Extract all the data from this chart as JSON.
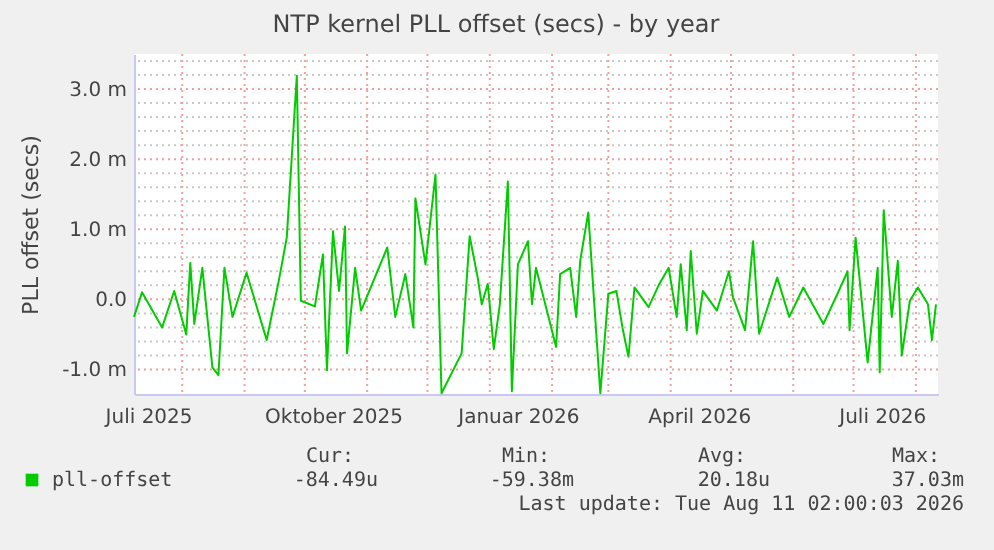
{
  "chart_data": {
    "type": "line",
    "title": "NTP kernel PLL offset (secs) - by year",
    "ylabel": "PLL offset (secs)",
    "x": [
      "2025-07-08",
      "2025-07-12",
      "2025-07-22",
      "2025-07-28",
      "2025-08-03",
      "2025-08-05",
      "2025-08-07",
      "2025-08-11",
      "2025-08-16",
      "2025-08-19",
      "2025-08-22",
      "2025-08-26",
      "2025-09-02",
      "2025-09-12",
      "2025-09-18",
      "2025-09-22",
      "2025-09-27",
      "2025-09-29",
      "2025-10-06",
      "2025-10-10",
      "2025-10-12",
      "2025-10-15",
      "2025-10-18",
      "2025-10-21",
      "2025-10-22",
      "2025-10-26",
      "2025-10-29",
      "2025-11-11",
      "2025-11-15",
      "2025-11-20",
      "2025-11-24",
      "2025-11-25",
      "2025-11-30",
      "2025-12-05",
      "2025-12-08",
      "2025-12-18",
      "2025-12-22",
      "2025-12-26",
      "2025-12-28",
      "2025-12-31",
      "2026-01-03",
      "2026-01-06",
      "2026-01-10",
      "2026-01-12",
      "2026-01-15",
      "2026-01-20",
      "2026-01-22",
      "2026-01-24",
      "2026-02-03",
      "2026-02-05",
      "2026-02-10",
      "2026-02-13",
      "2026-02-15",
      "2026-02-19",
      "2026-02-22",
      "2026-02-25",
      "2026-03-01",
      "2026-03-05",
      "2026-03-08",
      "2026-03-11",
      "2026-03-14",
      "2026-03-21",
      "2026-03-26",
      "2026-03-31",
      "2026-04-04",
      "2026-04-06",
      "2026-04-09",
      "2026-04-11",
      "2026-04-14",
      "2026-04-17",
      "2026-04-24",
      "2026-04-30",
      "2026-05-02",
      "2026-05-08",
      "2026-05-12",
      "2026-05-15",
      "2026-05-24",
      "2026-05-30",
      "2026-06-06",
      "2026-06-16",
      "2026-06-23",
      "2026-06-28",
      "2026-06-29",
      "2026-07-02",
      "2026-07-08",
      "2026-07-13",
      "2026-07-14",
      "2026-07-16",
      "2026-07-20",
      "2026-07-23",
      "2026-07-25",
      "2026-07-29",
      "2026-08-02",
      "2026-08-07",
      "2026-08-09",
      "2026-08-11"
    ],
    "series": [
      {
        "name": "pll-offset",
        "color": "#00cc00",
        "values": [
          -0.25,
          0.1,
          -0.4,
          0.12,
          -0.5,
          0.52,
          -0.35,
          0.45,
          -0.97,
          -1.08,
          0.45,
          -0.25,
          0.38,
          -0.58,
          0.26,
          0.88,
          3.19,
          -0.02,
          -0.1,
          0.64,
          -1.01,
          0.97,
          0.12,
          1.04,
          -0.77,
          0.45,
          -0.16,
          0.74,
          -0.25,
          0.36,
          -0.4,
          1.44,
          0.5,
          1.78,
          -1.34,
          -0.77,
          0.9,
          0.31,
          -0.07,
          0.22,
          -0.71,
          -0.07,
          1.68,
          -1.31,
          0.5,
          0.83,
          -0.07,
          0.45,
          -0.68,
          0.36,
          0.45,
          -0.25,
          0.55,
          1.24,
          -0.07,
          -1.34,
          0.08,
          0.12,
          -0.4,
          -0.82,
          0.17,
          -0.11,
          0.2,
          0.45,
          -0.25,
          0.5,
          -0.44,
          0.69,
          -0.49,
          0.12,
          -0.16,
          0.4,
          0.03,
          -0.44,
          0.83,
          -0.49,
          0.31,
          -0.25,
          0.17,
          -0.35,
          0.08,
          0.4,
          -0.44,
          0.88,
          -0.9,
          0.45,
          -1.04,
          1.27,
          -0.25,
          0.55,
          -0.8,
          -0.02,
          0.17,
          -0.07,
          -0.58,
          -0.07
        ]
      }
    ],
    "xlim": [
      "2025-07-08",
      "2026-08-12"
    ],
    "xticks": [
      {
        "value": "2025-07-15",
        "label": "Juli 2025"
      },
      {
        "value": "2025-08-01",
        "label": null
      },
      {
        "value": "2025-09-01",
        "label": null
      },
      {
        "value": "2025-10-01",
        "label": null
      },
      {
        "value": "2025-10-15",
        "label": "Oktober 2025"
      },
      {
        "value": "2025-11-01",
        "label": null
      },
      {
        "value": "2025-12-01",
        "label": null
      },
      {
        "value": "2026-01-01",
        "label": null
      },
      {
        "value": "2026-01-15",
        "label": "Januar 2026"
      },
      {
        "value": "2026-02-01",
        "label": null
      },
      {
        "value": "2026-03-01",
        "label": null
      },
      {
        "value": "2026-04-01",
        "label": null
      },
      {
        "value": "2026-04-15",
        "label": "April 2026"
      },
      {
        "value": "2026-05-01",
        "label": null
      },
      {
        "value": "2026-06-01",
        "label": null
      },
      {
        "value": "2026-07-01",
        "label": null
      },
      {
        "value": "2026-07-15",
        "label": "Juli 2026"
      },
      {
        "value": "2026-08-01",
        "label": null
      }
    ],
    "ylim": [
      -1.35,
      3.5
    ],
    "yticks": [
      {
        "value": -1,
        "label": "-1.0 m"
      },
      {
        "value": -0.8,
        "label": null
      },
      {
        "value": -0.6,
        "label": null
      },
      {
        "value": -0.4,
        "label": null
      },
      {
        "value": -0.2,
        "label": null
      },
      {
        "value": 0,
        "label": "0.0"
      },
      {
        "value": 0.2,
        "label": null
      },
      {
        "value": 0.4,
        "label": null
      },
      {
        "value": 0.6,
        "label": null
      },
      {
        "value": 0.8,
        "label": null
      },
      {
        "value": 1,
        "label": "1.0 m"
      },
      {
        "value": 1.2,
        "label": null
      },
      {
        "value": 1.4,
        "label": null
      },
      {
        "value": 1.6,
        "label": null
      },
      {
        "value": 1.8,
        "label": null
      },
      {
        "value": 2,
        "label": "2.0 m"
      },
      {
        "value": 2.2,
        "label": null
      },
      {
        "value": 2.4,
        "label": null
      },
      {
        "value": 2.6,
        "label": null
      },
      {
        "value": 2.8,
        "label": null
      },
      {
        "value": 3,
        "label": "3.0 m"
      },
      {
        "value": 3.2,
        "label": null
      },
      {
        "value": 3.4,
        "label": null
      }
    ],
    "grid": true,
    "legend": "bottom left",
    "marker": "none",
    "line_style": "solid",
    "annotations": [
      "Cur:",
      "-84.49u",
      "Min:",
      "-59.38m",
      "Avg:",
      "20.18u",
      "Max:",
      "37.03m",
      "Last update: Tue Aug 11 02:00:03 2026"
    ]
  }
}
